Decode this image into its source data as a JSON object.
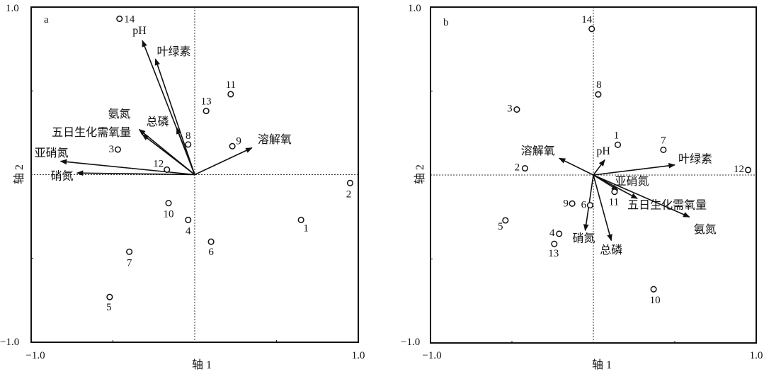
{
  "chart_data": [
    {
      "type": "scatter",
      "panel_label": "a",
      "xlabel": "轴 1",
      "ylabel": "轴 2",
      "xlim": [
        -1.0,
        1.0
      ],
      "ylim": [
        -1.0,
        1.0
      ],
      "x_tick_labels": [
        "−1.0",
        "1.0"
      ],
      "y_tick_labels": [
        "1.0",
        "−1.0"
      ],
      "reference_lines": "dotted lines at x=0 and y=0",
      "sites": [
        {
          "label": "1",
          "x": 0.65,
          "y": -0.27
        },
        {
          "label": "2",
          "x": 0.95,
          "y": -0.05
        },
        {
          "label": "3",
          "x": -0.47,
          "y": 0.15
        },
        {
          "label": "4",
          "x": -0.04,
          "y": -0.27
        },
        {
          "label": "5",
          "x": -0.52,
          "y": -0.73
        },
        {
          "label": "6",
          "x": 0.1,
          "y": -0.4
        },
        {
          "label": "7",
          "x": -0.4,
          "y": -0.46
        },
        {
          "label": "8",
          "x": -0.04,
          "y": 0.18
        },
        {
          "label": "9",
          "x": 0.23,
          "y": 0.17
        },
        {
          "label": "10",
          "x": -0.16,
          "y": -0.17
        },
        {
          "label": "11",
          "x": 0.22,
          "y": 0.48
        },
        {
          "label": "12",
          "x": -0.17,
          "y": 0.03
        },
        {
          "label": "13",
          "x": 0.07,
          "y": 0.38
        },
        {
          "label": "14",
          "x": -0.46,
          "y": 0.93
        }
      ],
      "vectors": [
        {
          "label": "pH",
          "x": -0.32,
          "y": 0.8
        },
        {
          "label": "叶绿素",
          "x": -0.24,
          "y": 0.69
        },
        {
          "label": "总磷",
          "x": -0.11,
          "y": 0.28
        },
        {
          "label": "氨氮",
          "x": -0.34,
          "y": 0.27
        },
        {
          "label": "五日生化需氧量",
          "x": -0.32,
          "y": 0.24
        },
        {
          "label": "亚硝氮",
          "x": -0.82,
          "y": 0.08
        },
        {
          "label": "硝氮",
          "x": -0.72,
          "y": 0.01
        },
        {
          "label": "溶解氧",
          "x": 0.35,
          "y": 0.16
        }
      ]
    },
    {
      "type": "scatter",
      "panel_label": "b",
      "xlabel": "轴 1",
      "ylabel": "轴 2",
      "xlim": [
        -1.0,
        1.0
      ],
      "ylim": [
        -1.0,
        1.0
      ],
      "x_tick_labels": [
        "−1.0",
        "1.0"
      ],
      "y_tick_labels": [
        "1.0",
        "−1.0"
      ],
      "reference_lines": "dotted lines at x=0 and y=0",
      "sites": [
        {
          "label": "1",
          "x": 0.15,
          "y": 0.18
        },
        {
          "label": "2",
          "x": -0.42,
          "y": 0.04
        },
        {
          "label": "3",
          "x": -0.47,
          "y": 0.39
        },
        {
          "label": "4",
          "x": -0.21,
          "y": -0.35
        },
        {
          "label": "5",
          "x": -0.54,
          "y": -0.27
        },
        {
          "label": "6",
          "x": -0.02,
          "y": -0.18
        },
        {
          "label": "7",
          "x": 0.43,
          "y": 0.15
        },
        {
          "label": "8",
          "x": 0.03,
          "y": 0.48
        },
        {
          "label": "9",
          "x": -0.13,
          "y": -0.17
        },
        {
          "label": "10",
          "x": 0.37,
          "y": -0.68
        },
        {
          "label": "11",
          "x": 0.13,
          "y": -0.1
        },
        {
          "label": "12",
          "x": 0.95,
          "y": 0.03
        },
        {
          "label": "13",
          "x": -0.24,
          "y": -0.41
        },
        {
          "label": "14",
          "x": -0.01,
          "y": 0.87
        }
      ],
      "vectors": [
        {
          "label": "溶解氧",
          "x": -0.21,
          "y": 0.1
        },
        {
          "label": "pH",
          "x": 0.07,
          "y": 0.09
        },
        {
          "label": "叶绿素",
          "x": 0.5,
          "y": 0.06
        },
        {
          "label": "亚硝氮",
          "x": 0.15,
          "y": -0.09
        },
        {
          "label": "五日生化需氧量",
          "x": 0.27,
          "y": -0.14
        },
        {
          "label": "氨氮",
          "x": 0.59,
          "y": -0.25
        },
        {
          "label": "硝氮",
          "x": -0.05,
          "y": -0.33
        },
        {
          "label": "总磷",
          "x": 0.11,
          "y": -0.39
        }
      ]
    }
  ]
}
